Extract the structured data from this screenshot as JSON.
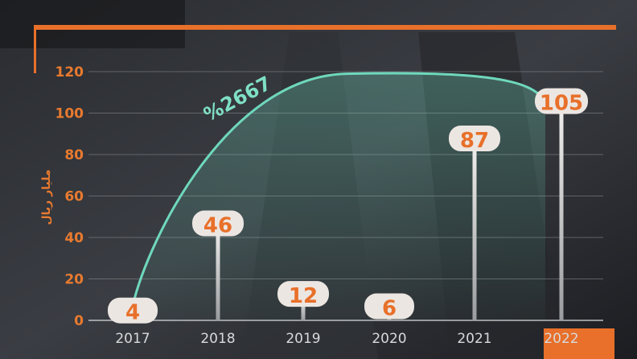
{
  "chart_data": {
    "type": "bar",
    "categories": [
      "2017",
      "2018",
      "2019",
      "2020",
      "2021",
      "2022"
    ],
    "values": [
      4,
      46,
      12,
      6,
      87,
      105
    ],
    "ylabel": "مليار ريال",
    "ylim": [
      0,
      120
    ],
    "yticks": [
      "0",
      "20",
      "40",
      "60",
      "80",
      "100",
      "120"
    ],
    "annotation": "%2667",
    "highlight_category": "2022",
    "grid": true,
    "colors": {
      "accent": "#e8702a",
      "curve": "#6fd8bc",
      "label_bg": "#ece6e2",
      "background": "#1e2024"
    }
  }
}
